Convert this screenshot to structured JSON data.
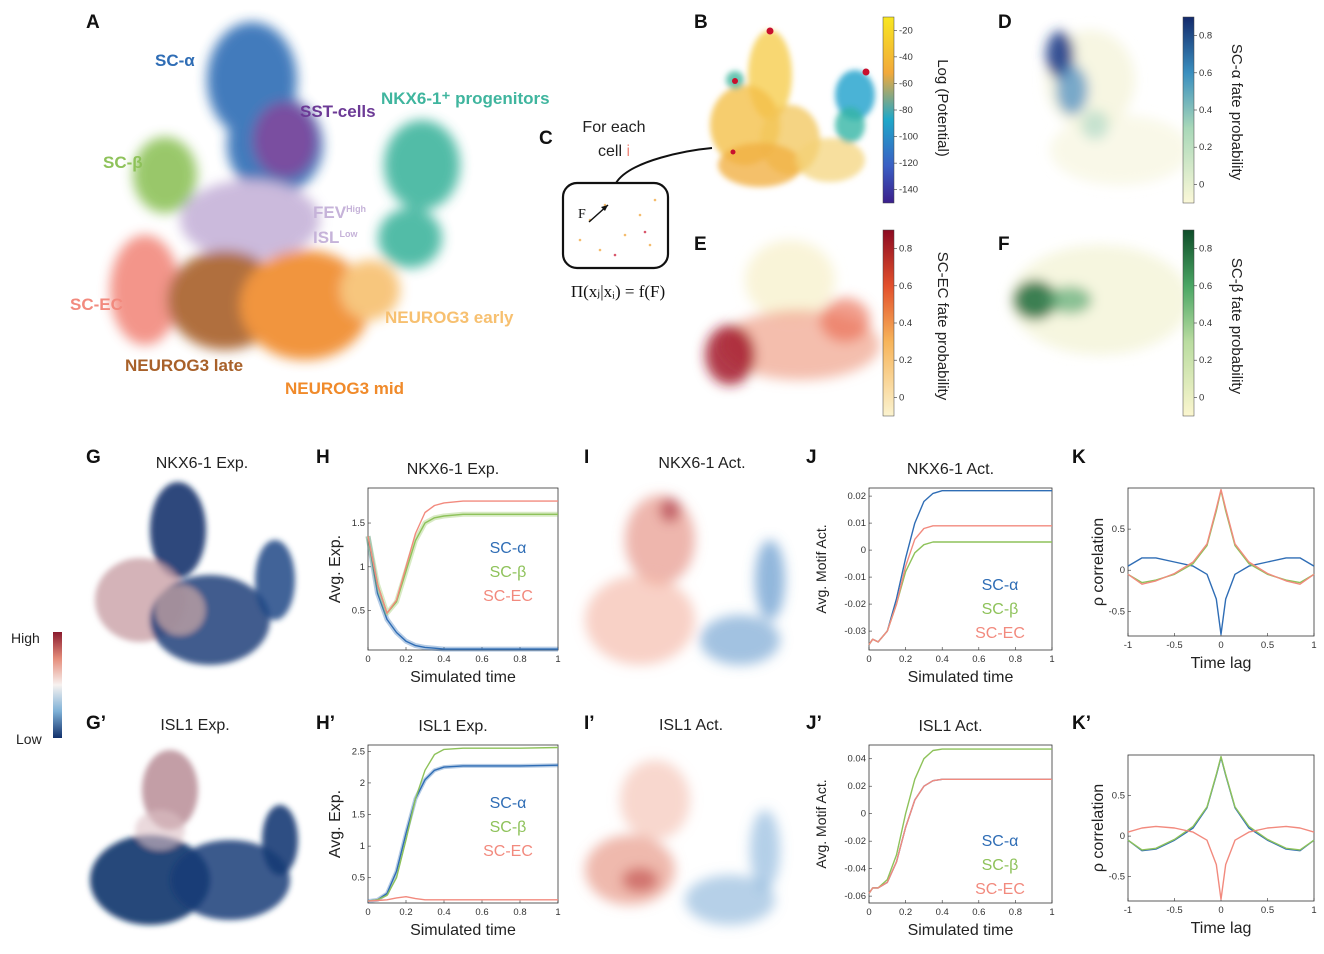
{
  "panel_letters": [
    "A",
    "B",
    "C",
    "D",
    "E",
    "F",
    "G",
    "H",
    "I",
    "J",
    "K",
    "G’",
    "H’",
    "I’",
    "J’",
    "K’"
  ],
  "colors": {
    "sc_alpha": "#2f6db5",
    "sc_beta": "#8ec25a",
    "sc_ec": "#f28a7e",
    "sst": "#6c3a96",
    "nkx": "#3fb59e",
    "fev": "#c6b3d9",
    "neurog3_early": "#f7c070",
    "neurog3_mid": "#f08a2a",
    "neurog3_late": "#a8612a"
  },
  "panel_a": {
    "clusters": {
      "sc_alpha": "SC-α",
      "sst": "SST-cells",
      "nkx": "NKX6-1⁺ progenitors",
      "sc_beta": "SC-β",
      "fev_a": "FEV",
      "fev_b": "High",
      "isl_a": "ISL",
      "isl_b": "Low",
      "sc_ec": "SC-EC",
      "neurog3_early": "NEUROG3 early",
      "neurog3_mid": "NEUROG3 mid",
      "neurog3_late": "NEUROG3 late"
    }
  },
  "panel_b": {
    "colorbar_label": "Log (Potential)",
    "colorbar_ticks": [
      "-20",
      "-40",
      "-60",
      "-80",
      "-100",
      "-120",
      "-140"
    ]
  },
  "panel_c": {
    "text_line1": "For each",
    "text_line2": "cell",
    "cell_index": "i",
    "vector_label": "F",
    "formula": "Π(xⱼ|xᵢ) = f(F)"
  },
  "panel_d": {
    "colorbar_label": "SC-α fate probability",
    "colorbar_ticks": [
      "0.8",
      "0.6",
      "0.4",
      "0.2",
      "0"
    ]
  },
  "panel_e": {
    "colorbar_label": "SC-EC fate probability",
    "colorbar_ticks": [
      "0.8",
      "0.6",
      "0.4",
      "0.2",
      "0"
    ]
  },
  "panel_f": {
    "colorbar_label": "SC-β fate probability",
    "colorbar_ticks": [
      "0.8",
      "0.6",
      "0.4",
      "0.2",
      "0"
    ]
  },
  "panel_g": {
    "title": "NKX6-1 Exp."
  },
  "panel_g2": {
    "title": "ISL1 Exp."
  },
  "panel_i": {
    "title": "NKX6-1 Act."
  },
  "panel_i2": {
    "title": "ISL1 Act."
  },
  "expression_colorbar": {
    "high": "High",
    "low": "Low"
  },
  "legend_names": [
    "SC-α",
    "SC-β",
    "SC-EC"
  ],
  "chart_data": [
    {
      "id": "H",
      "type": "line",
      "title": "NKX6-1 Exp.",
      "xlabel": "Simulated time",
      "ylabel": "Avg. Exp.",
      "xlim": [
        0,
        1
      ],
      "ylim": [
        0.05,
        1.9
      ],
      "xticks": [
        "0",
        "0.2",
        "0.4",
        "0.6",
        "0.8",
        "1"
      ],
      "yticks": [
        "0.5",
        "1",
        "1.5"
      ],
      "x": [
        0,
        0.05,
        0.1,
        0.15,
        0.2,
        0.25,
        0.3,
        0.35,
        0.4,
        0.5,
        0.6,
        0.8,
        1.0
      ],
      "series": [
        {
          "name": "SC-α",
          "values": [
            1.35,
            0.7,
            0.4,
            0.25,
            0.15,
            0.1,
            0.08,
            0.07,
            0.06,
            0.06,
            0.06,
            0.06,
            0.06
          ]
        },
        {
          "name": "SC-β",
          "values": [
            1.35,
            0.8,
            0.47,
            0.6,
            0.95,
            1.3,
            1.5,
            1.56,
            1.58,
            1.6,
            1.6,
            1.6,
            1.6
          ]
        },
        {
          "name": "SC-EC",
          "values": [
            1.35,
            0.8,
            0.47,
            0.62,
            1.0,
            1.38,
            1.62,
            1.7,
            1.73,
            1.75,
            1.75,
            1.75,
            1.75
          ]
        }
      ]
    },
    {
      "id": "J",
      "type": "line",
      "title": "NKX6-1 Act.",
      "xlabel": "Simulated time",
      "ylabel": "Avg. Motif Act.",
      "xlim": [
        0,
        1
      ],
      "ylim": [
        -0.037,
        0.023
      ],
      "xticks": [
        "0",
        "0.2",
        "0.4",
        "0.6",
        "0.8",
        "1"
      ],
      "yticks": [
        "0.02",
        "0.01",
        "0",
        "-0.01",
        "-0.02",
        "-0.03"
      ],
      "x": [
        0,
        0.02,
        0.05,
        0.1,
        0.15,
        0.2,
        0.25,
        0.3,
        0.35,
        0.4,
        0.5,
        0.7,
        1.0
      ],
      "series": [
        {
          "name": "SC-α",
          "values": [
            -0.035,
            -0.033,
            -0.034,
            -0.03,
            -0.018,
            -0.003,
            0.01,
            0.018,
            0.021,
            0.022,
            0.022,
            0.022,
            0.022
          ]
        },
        {
          "name": "SC-β",
          "values": [
            -0.035,
            -0.033,
            -0.034,
            -0.03,
            -0.02,
            -0.008,
            -0.001,
            0.002,
            0.003,
            0.003,
            0.003,
            0.003,
            0.003
          ]
        },
        {
          "name": "SC-EC",
          "values": [
            -0.035,
            -0.033,
            -0.034,
            -0.03,
            -0.02,
            -0.006,
            0.004,
            0.008,
            0.009,
            0.009,
            0.009,
            0.009,
            0.009
          ]
        }
      ]
    },
    {
      "id": "K",
      "type": "line",
      "xlabel": "Time lag",
      "ylabel": "ρ correlation",
      "xlim": [
        -1,
        1
      ],
      "ylim": [
        -0.8,
        1.0
      ],
      "xticks": [
        "-1",
        "-0.5",
        "0",
        "0.5",
        "1"
      ],
      "yticks": [
        "0.5",
        "0",
        "-0.5"
      ],
      "x": [
        -1,
        -0.85,
        -0.7,
        -0.5,
        -0.3,
        -0.15,
        -0.05,
        0,
        0.05,
        0.15,
        0.3,
        0.5,
        0.7,
        0.85,
        1
      ],
      "series": [
        {
          "name": "SC-α",
          "values": [
            0.05,
            0.15,
            0.15,
            0.1,
            0.05,
            -0.05,
            -0.35,
            -0.78,
            -0.35,
            -0.05,
            0.05,
            0.1,
            0.15,
            0.15,
            0.05
          ]
        },
        {
          "name": "SC-β",
          "values": [
            -0.05,
            -0.15,
            -0.12,
            -0.05,
            0.08,
            0.3,
            0.72,
            0.97,
            0.72,
            0.3,
            0.08,
            -0.05,
            -0.12,
            -0.15,
            -0.05
          ]
        },
        {
          "name": "SC-EC",
          "values": [
            -0.05,
            -0.17,
            -0.13,
            -0.04,
            0.1,
            0.32,
            0.75,
            0.98,
            0.75,
            0.32,
            0.1,
            -0.04,
            -0.13,
            -0.17,
            -0.05
          ]
        }
      ]
    },
    {
      "id": "H’",
      "type": "line",
      "title": "ISL1 Exp.",
      "xlabel": "Simulated time",
      "ylabel": "Avg. Exp.",
      "xlim": [
        0,
        1
      ],
      "ylim": [
        0.1,
        2.6
      ],
      "xticks": [
        "0",
        "0.2",
        "0.4",
        "0.6",
        "0.8",
        "1"
      ],
      "yticks": [
        "0.5",
        "1",
        "1.5",
        "2",
        "2.5"
      ],
      "x": [
        0,
        0.05,
        0.1,
        0.15,
        0.2,
        0.25,
        0.3,
        0.35,
        0.4,
        0.5,
        0.6,
        0.8,
        1.0
      ],
      "series": [
        {
          "name": "SC-α",
          "values": [
            0.13,
            0.15,
            0.25,
            0.6,
            1.2,
            1.75,
            2.05,
            2.2,
            2.25,
            2.27,
            2.27,
            2.27,
            2.28
          ]
        },
        {
          "name": "SC-β",
          "values": [
            0.13,
            0.15,
            0.22,
            0.5,
            1.1,
            1.75,
            2.2,
            2.45,
            2.53,
            2.55,
            2.55,
            2.55,
            2.56
          ]
        },
        {
          "name": "SC-EC",
          "values": [
            0.13,
            0.14,
            0.15,
            0.18,
            0.2,
            0.17,
            0.15,
            0.15,
            0.15,
            0.15,
            0.15,
            0.15,
            0.15
          ]
        }
      ]
    },
    {
      "id": "J’",
      "type": "line",
      "title": "ISL1 Act.",
      "xlabel": "Simulated time",
      "ylabel": "Avg. Motif Act.",
      "xlim": [
        0,
        1
      ],
      "ylim": [
        -0.065,
        0.05
      ],
      "xticks": [
        "0",
        "0.2",
        "0.4",
        "0.6",
        "0.8",
        "1"
      ],
      "yticks": [
        "0.04",
        "0.02",
        "0",
        "-0.02",
        "-0.04",
        "-0.06"
      ],
      "x": [
        0,
        0.02,
        0.05,
        0.1,
        0.15,
        0.2,
        0.25,
        0.3,
        0.35,
        0.4,
        0.5,
        0.7,
        1.0
      ],
      "series": [
        {
          "name": "SC-α",
          "values": [
            -0.058,
            -0.054,
            -0.054,
            -0.05,
            -0.035,
            -0.01,
            0.01,
            0.02,
            0.024,
            0.025,
            0.025,
            0.025,
            0.025
          ]
        },
        {
          "name": "SC-β",
          "values": [
            -0.058,
            -0.054,
            -0.054,
            -0.048,
            -0.03,
            0.0,
            0.025,
            0.04,
            0.046,
            0.047,
            0.047,
            0.047,
            0.047
          ]
        },
        {
          "name": "SC-EC",
          "values": [
            -0.058,
            -0.054,
            -0.054,
            -0.05,
            -0.035,
            -0.01,
            0.01,
            0.02,
            0.024,
            0.025,
            0.025,
            0.025,
            0.025
          ]
        }
      ]
    },
    {
      "id": "K’",
      "type": "line",
      "xlabel": "Time lag",
      "ylabel": "ρ correlation",
      "xlim": [
        -1,
        1
      ],
      "ylim": [
        -0.8,
        1.0
      ],
      "xticks": [
        "-1",
        "-0.5",
        "0",
        "0.5",
        "1"
      ],
      "yticks": [
        "0.5",
        "0",
        "-0.5"
      ],
      "x": [
        -1,
        -0.85,
        -0.7,
        -0.5,
        -0.3,
        -0.15,
        -0.05,
        0,
        0.05,
        0.15,
        0.3,
        0.5,
        0.7,
        0.85,
        1
      ],
      "series": [
        {
          "name": "SC-α",
          "values": [
            -0.05,
            -0.18,
            -0.16,
            -0.05,
            0.1,
            0.35,
            0.75,
            0.97,
            0.75,
            0.35,
            0.1,
            -0.05,
            -0.16,
            -0.18,
            -0.05
          ]
        },
        {
          "name": "SC-β",
          "values": [
            -0.05,
            -0.17,
            -0.15,
            -0.04,
            0.12,
            0.36,
            0.76,
            0.98,
            0.76,
            0.36,
            0.12,
            -0.04,
            -0.15,
            -0.17,
            -0.05
          ]
        },
        {
          "name": "SC-EC",
          "values": [
            0.05,
            0.1,
            0.12,
            0.1,
            0.05,
            -0.05,
            -0.35,
            -0.78,
            -0.35,
            -0.05,
            0.05,
            0.1,
            0.12,
            0.1,
            0.05
          ]
        }
      ]
    }
  ]
}
